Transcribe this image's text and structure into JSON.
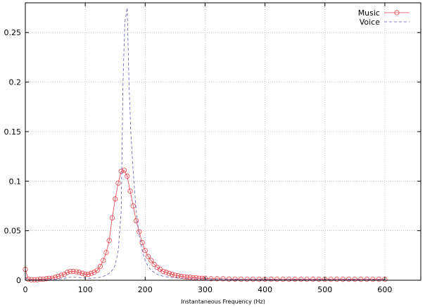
{
  "chart_data": {
    "type": "line",
    "title": "",
    "xlabel": "Instantaneous Frequency (Hz)",
    "ylabel": "",
    "xlim": [
      0,
      660
    ],
    "ylim": [
      0,
      0.28
    ],
    "xticks": [
      0,
      100,
      200,
      300,
      400,
      500,
      600
    ],
    "yticks": [
      0,
      0.05,
      0.1,
      0.15,
      0.2,
      0.25
    ],
    "grid": true,
    "legend_position": "top-right",
    "series": [
      {
        "name": "Music",
        "color": "#e8404a",
        "style": "solid-with-circle-markers",
        "x": [
          0,
          5,
          10,
          15,
          20,
          25,
          30,
          35,
          40,
          45,
          50,
          55,
          60,
          65,
          70,
          75,
          80,
          85,
          90,
          95,
          100,
          105,
          110,
          115,
          120,
          125,
          130,
          135,
          140,
          145,
          150,
          155,
          160,
          165,
          170,
          175,
          180,
          185,
          190,
          195,
          200,
          205,
          210,
          215,
          220,
          225,
          230,
          235,
          240,
          245,
          250,
          255,
          260,
          265,
          270,
          275,
          280,
          285,
          290,
          295,
          300,
          310,
          320,
          330,
          340,
          350,
          360,
          370,
          380,
          390,
          400,
          410,
          420,
          430,
          440,
          450,
          460,
          470,
          480,
          490,
          500,
          510,
          520,
          530,
          540,
          550,
          560,
          570,
          580,
          590,
          600
        ],
        "y": [
          0.011,
          0.001,
          0.0005,
          0.0005,
          0.0005,
          0.001,
          0.001,
          0.0015,
          0.002,
          0.002,
          0.003,
          0.004,
          0.005,
          0.006,
          0.008,
          0.009,
          0.009,
          0.0085,
          0.008,
          0.007,
          0.006,
          0.006,
          0.007,
          0.008,
          0.01,
          0.014,
          0.02,
          0.028,
          0.04,
          0.063,
          0.082,
          0.098,
          0.11,
          0.111,
          0.105,
          0.09,
          0.075,
          0.06,
          0.049,
          0.038,
          0.03,
          0.024,
          0.02,
          0.016,
          0.013,
          0.011,
          0.009,
          0.008,
          0.007,
          0.006,
          0.005,
          0.0045,
          0.004,
          0.0035,
          0.003,
          0.003,
          0.0025,
          0.0025,
          0.002,
          0.002,
          0.002,
          0.0015,
          0.0015,
          0.0015,
          0.0012,
          0.0012,
          0.001,
          0.001,
          0.001,
          0.001,
          0.001,
          0.001,
          0.001,
          0.001,
          0.001,
          0.001,
          0.001,
          0.001,
          0.001,
          0.001,
          0.001,
          0.001,
          0.001,
          0.001,
          0.001,
          0.001,
          0.001,
          0.001,
          0.001,
          0.001,
          0.001
        ]
      },
      {
        "name": "Voice",
        "color": "#5b5bb0",
        "style": "dashed",
        "x": [
          0,
          5,
          10,
          15,
          20,
          25,
          30,
          35,
          40,
          45,
          50,
          55,
          60,
          65,
          70,
          75,
          80,
          85,
          90,
          95,
          100,
          105,
          110,
          115,
          120,
          125,
          130,
          135,
          140,
          145,
          150,
          155,
          160,
          163,
          166,
          170,
          173,
          176,
          180,
          185,
          190,
          195,
          200,
          205,
          210,
          215,
          220,
          225,
          230,
          235,
          240,
          250,
          260,
          270,
          280,
          290,
          300,
          320,
          340,
          360,
          380,
          400,
          450,
          500,
          550,
          600
        ],
        "y": [
          0.003,
          0.0005,
          0.0003,
          0.0003,
          0.0003,
          0.0004,
          0.0005,
          0.0005,
          0.0007,
          0.0008,
          0.001,
          0.0012,
          0.0015,
          0.002,
          0.0025,
          0.003,
          0.003,
          0.003,
          0.0028,
          0.0025,
          0.0022,
          0.002,
          0.002,
          0.0022,
          0.0025,
          0.003,
          0.004,
          0.005,
          0.007,
          0.01,
          0.015,
          0.03,
          0.07,
          0.2,
          0.26,
          0.275,
          0.2,
          0.15,
          0.11,
          0.07,
          0.045,
          0.03,
          0.02,
          0.014,
          0.01,
          0.008,
          0.006,
          0.005,
          0.004,
          0.0035,
          0.003,
          0.0025,
          0.002,
          0.0018,
          0.0015,
          0.0013,
          0.0012,
          0.001,
          0.0009,
          0.0008,
          0.0007,
          0.0006,
          0.0005,
          0.0005,
          0.0005,
          0.0005
        ]
      }
    ]
  }
}
